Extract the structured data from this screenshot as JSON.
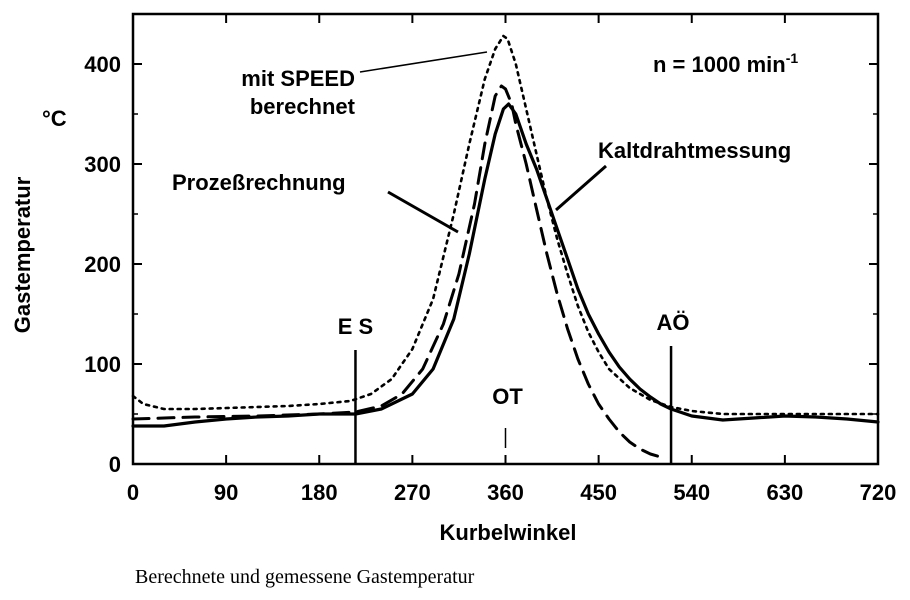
{
  "chart_data": {
    "type": "line",
    "xlabel": "Kurbelwinkel",
    "ylabel": "Gastemperatur",
    "yunit": "°C",
    "xlim": [
      0,
      720
    ],
    "ylim": [
      0,
      450
    ],
    "xticks": [
      0,
      90,
      180,
      270,
      360,
      450,
      540,
      630,
      720
    ],
    "yticks": [
      0,
      100,
      200,
      300,
      400
    ],
    "grid": false,
    "series": [
      {
        "name": "Kaltdrahtmessung",
        "style": "solid",
        "x": [
          0,
          30,
          60,
          90,
          120,
          150,
          180,
          200,
          215,
          240,
          270,
          290,
          310,
          325,
          340,
          350,
          358,
          363,
          370,
          380,
          390,
          400,
          410,
          420,
          430,
          440,
          450,
          460,
          470,
          480,
          490,
          500,
          510,
          520,
          540,
          570,
          600,
          630,
          660,
          690,
          720
        ],
        "y": [
          38,
          38,
          42,
          45,
          47,
          48,
          50,
          50,
          50,
          55,
          70,
          95,
          145,
          210,
          285,
          330,
          355,
          360,
          350,
          320,
          295,
          265,
          235,
          205,
          175,
          150,
          130,
          112,
          97,
          85,
          75,
          67,
          60,
          55,
          48,
          44,
          46,
          48,
          47,
          45,
          42
        ]
      },
      {
        "name": "Prozeßrechnung",
        "style": "dashed",
        "x": [
          0,
          60,
          120,
          180,
          215,
          240,
          260,
          280,
          300,
          315,
          330,
          340,
          350,
          356,
          360,
          366,
          370,
          380,
          390,
          400,
          410,
          420,
          430,
          440,
          450,
          460,
          470,
          480,
          490,
          500,
          510
        ],
        "y": [
          45,
          47,
          48,
          50,
          52,
          58,
          70,
          95,
          140,
          190,
          260,
          320,
          368,
          378,
          375,
          360,
          340,
          300,
          255,
          210,
          170,
          135,
          105,
          80,
          60,
          45,
          32,
          22,
          15,
          10,
          7
        ]
      },
      {
        "name": "mit SPEED berechnet",
        "style": "dotted",
        "x": [
          0,
          10,
          30,
          60,
          90,
          120,
          150,
          180,
          210,
          230,
          250,
          270,
          290,
          310,
          325,
          340,
          350,
          358,
          362,
          370,
          380,
          390,
          400,
          410,
          420,
          430,
          440,
          450,
          460,
          480,
          500,
          520,
          540,
          570,
          600,
          630,
          660,
          690,
          720
        ],
        "y": [
          68,
          60,
          55,
          55,
          56,
          57,
          58,
          60,
          63,
          70,
          85,
          115,
          165,
          250,
          320,
          385,
          415,
          428,
          425,
          400,
          355,
          310,
          265,
          225,
          190,
          158,
          132,
          112,
          95,
          76,
          64,
          57,
          53,
          50,
          50,
          50,
          50,
          50,
          50
        ]
      }
    ],
    "annotations": {
      "speed_label_line1": "mit SPEED",
      "speed_label_line2": "berechnet",
      "prozess_label": "Prozeßrechnung",
      "kalt_label": "Kaltdrahtmessung",
      "speed_prefix": "n = 1000 min",
      "speed_exp": "-1",
      "es_label": "E S",
      "es_x": 215,
      "ot_label": "OT",
      "ot_x": 360,
      "ao_label": "AÖ",
      "ao_x": 520
    }
  },
  "caption": "Berechnete und gemessene Gastemperatur"
}
